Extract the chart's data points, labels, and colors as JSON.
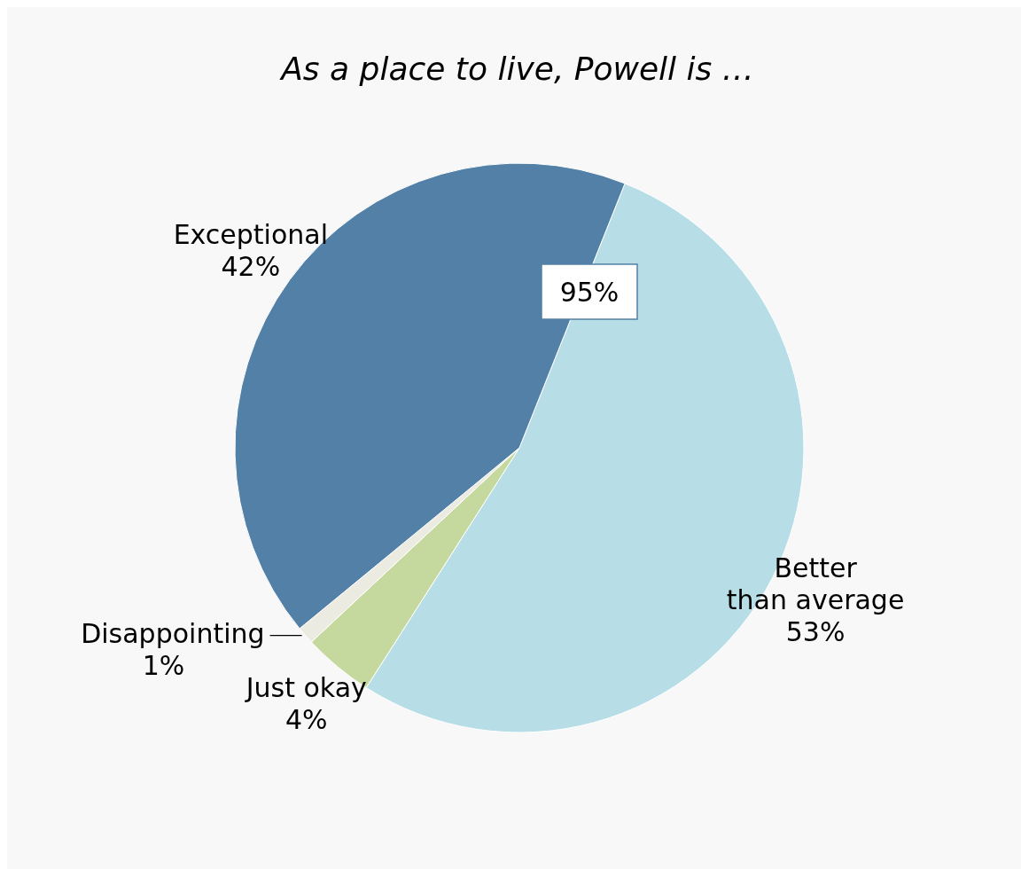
{
  "chart_data": {
    "type": "pie",
    "title": "As a place to live, Powell is …",
    "categories": [
      "Better than average",
      "Just okay",
      "Disappointing",
      "Exceptional"
    ],
    "values": [
      53,
      4,
      1,
      42
    ],
    "colors": [
      "#b7dde7",
      "#c5d89d",
      "#ecebe1",
      "#5280a6"
    ],
    "value_labels": [
      "53%",
      "4%",
      "1%",
      "42%"
    ],
    "annotations": [
      "95%"
    ]
  }
}
